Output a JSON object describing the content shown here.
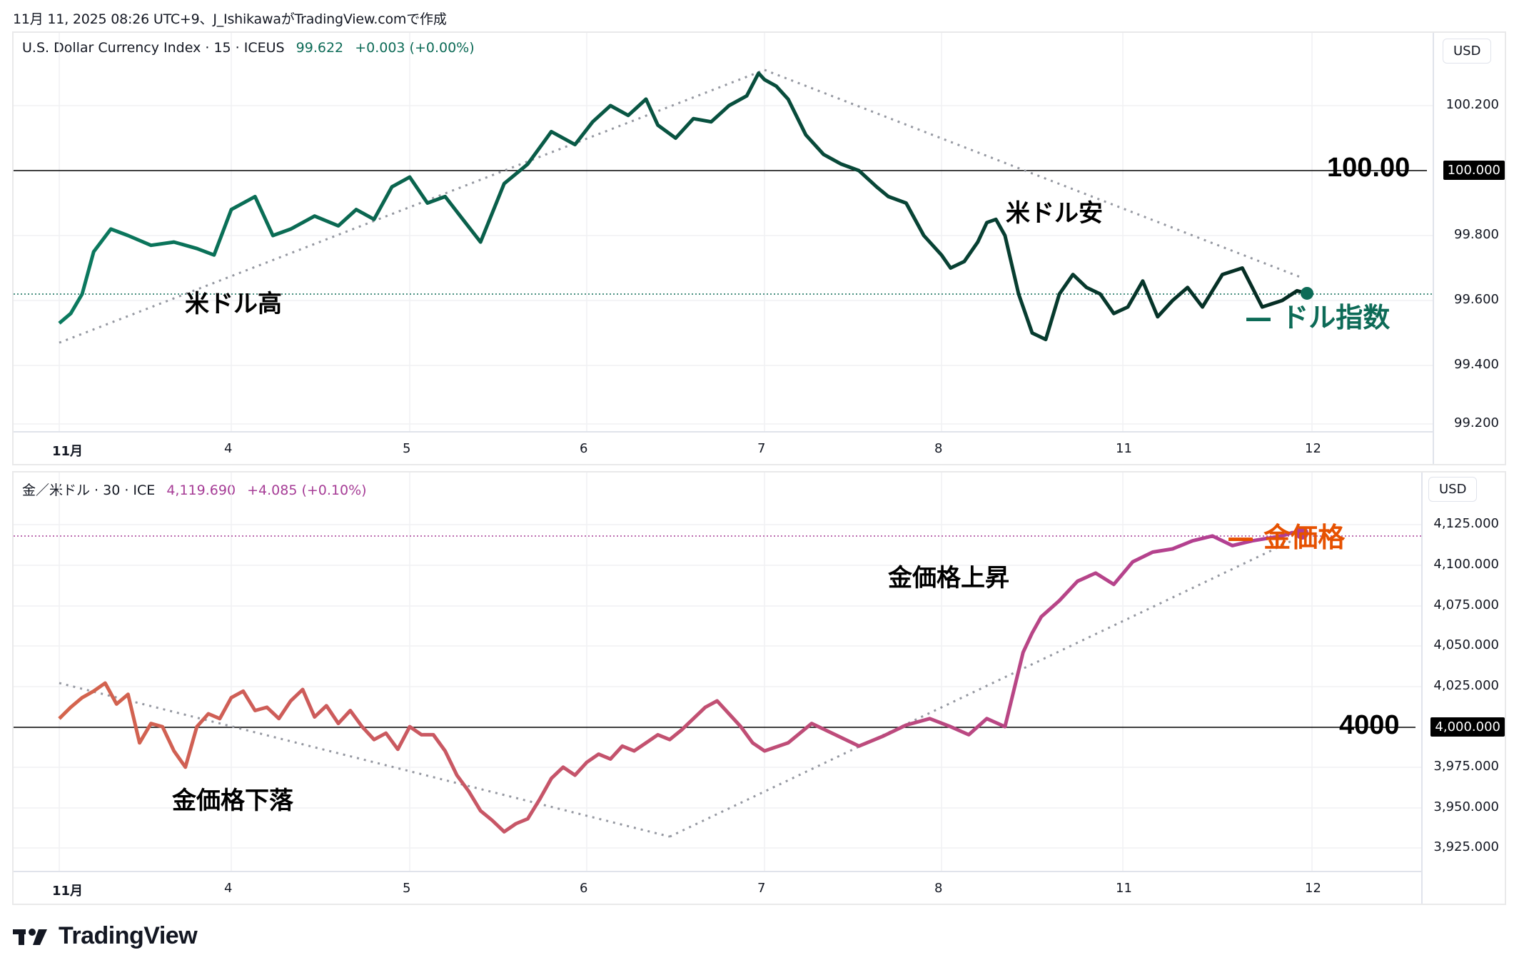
{
  "caption": "11月 11, 2025 08:26 UTC+9、J_IshikawaがTradingView.comで作成",
  "top_pane": {
    "symbol": "U.S. Dollar Currency Index · 15 · ICEUS",
    "last": "99.622",
    "change": "+0.003 (+0.00%)",
    "currency_button": "USD",
    "price_ticks": [
      "100.200",
      "100.000",
      "99.800",
      "99.600",
      "99.400",
      "99.200"
    ],
    "highlight_price": "100.000",
    "reference_level_label": "100.00",
    "series_label": "— ドル指数",
    "annotations": [
      "米ドル高",
      "米ドル安"
    ],
    "line_color_start": "#0b7a5f",
    "line_color_end": "#062b22"
  },
  "bottom_pane": {
    "symbol": "金／米ドル · 30 · ICE",
    "last": "4,119.690",
    "change": "+4.085 (+0.10%)",
    "currency_button": "USD",
    "price_ticks": [
      "4,125.000",
      "4,100.000",
      "4,075.000",
      "4,050.000",
      "4,025.000",
      "3,975.000",
      "3,950.000",
      "3,925.000"
    ],
    "highlight_price": "4,000.000",
    "reference_level_label": "4000",
    "series_label": "— 金価格",
    "annotations": [
      "金価格下落",
      "金価格上昇"
    ],
    "line_color_start": "#d4644c",
    "line_color_end": "#b03d96"
  },
  "time_ticks": [
    "11月",
    "4",
    "5",
    "6",
    "7",
    "8",
    "11",
    "12"
  ],
  "branding": "TradingView",
  "colors": {
    "dxy_text": "#0d6b57",
    "gold_text": "#a63c96",
    "gold_label": "#e65100",
    "dxy_label": "#0d6b57"
  },
  "chart_data": [
    {
      "type": "line",
      "title": "U.S. Dollar Currency Index · 15 · ICEUS",
      "xlabel": "",
      "ylabel": "USD",
      "categories": [
        "11月",
        "4",
        "5",
        "6",
        "7",
        "8",
        "11",
        "12"
      ],
      "ylim": [
        99.2,
        100.3
      ],
      "reference_line": 100.0,
      "last_value": 99.622,
      "annotations": [
        {
          "text": "米ドル高",
          "trend": "up",
          "from": [
            0,
            99.47
          ],
          "to": [
            6,
            100.31
          ]
        },
        {
          "text": "米ドル安",
          "trend": "down",
          "from": [
            6,
            100.31
          ],
          "to": [
            11.3,
            99.67
          ]
        }
      ],
      "series": [
        {
          "name": "ドル指数",
          "x": [
            0.0,
            0.1,
            0.2,
            0.3,
            0.45,
            0.6,
            0.8,
            1.0,
            1.2,
            1.35,
            1.5,
            1.7,
            1.85,
            2.0,
            2.2,
            2.4,
            2.55,
            2.7,
            2.85,
            3.0,
            3.15,
            3.3,
            3.45,
            3.6,
            3.8,
            4.0,
            4.2,
            4.4,
            4.55,
            4.7,
            4.85,
            5.0,
            5.1,
            5.25,
            5.4,
            5.55,
            5.7,
            5.85,
            5.95,
            6.0,
            6.1,
            6.2,
            6.35,
            6.5,
            6.65,
            6.8,
            6.95,
            7.05,
            7.2,
            7.35,
            7.5,
            7.6,
            7.75,
            7.9,
            8.0,
            8.1,
            8.2,
            8.35,
            8.5,
            8.65,
            8.8,
            8.95,
            9.1,
            9.25,
            9.4,
            9.55,
            9.7,
            9.85,
            10.0,
            10.15,
            10.3,
            10.5,
            10.7,
            10.9,
            11.1,
            11.25,
            11.35
          ],
          "values": [
            99.53,
            99.56,
            99.62,
            99.75,
            99.82,
            99.8,
            99.77,
            99.78,
            99.76,
            99.74,
            99.88,
            99.92,
            99.8,
            99.82,
            99.86,
            99.83,
            99.88,
            99.85,
            99.95,
            99.98,
            99.9,
            99.92,
            99.85,
            99.78,
            99.96,
            100.02,
            100.12,
            100.08,
            100.15,
            100.2,
            100.17,
            100.22,
            100.14,
            100.1,
            100.16,
            100.15,
            100.2,
            100.23,
            100.3,
            100.28,
            100.26,
            100.22,
            100.11,
            100.05,
            100.02,
            100.0,
            99.95,
            99.92,
            99.9,
            99.8,
            99.74,
            99.7,
            99.72,
            99.78,
            99.84,
            99.85,
            99.8,
            99.62,
            99.5,
            99.48,
            99.62,
            99.68,
            99.64,
            99.62,
            99.56,
            99.58,
            99.66,
            99.55,
            99.6,
            99.64,
            99.58,
            99.68,
            99.7,
            99.58,
            99.6,
            99.63,
            99.622
          ]
        }
      ]
    },
    {
      "type": "line",
      "title": "金／米ドル · 30 · ICE",
      "xlabel": "",
      "ylabel": "USD",
      "categories": [
        "11月",
        "4",
        "5",
        "6",
        "7",
        "8",
        "11",
        "12"
      ],
      "ylim": [
        3920,
        4130
      ],
      "reference_line": 4000,
      "last_value": 4119.69,
      "annotations": [
        {
          "text": "金価格下落",
          "trend": "down",
          "from": [
            0,
            4027
          ],
          "to": [
            5.2,
            3932
          ]
        },
        {
          "text": "金価格上昇",
          "trend": "up",
          "from": [
            5.2,
            3932
          ],
          "to": [
            11.3,
            4118
          ]
        }
      ],
      "series": [
        {
          "name": "金価格",
          "x": [
            0.0,
            0.1,
            0.2,
            0.3,
            0.4,
            0.5,
            0.6,
            0.7,
            0.8,
            0.9,
            1.0,
            1.1,
            1.2,
            1.3,
            1.4,
            1.5,
            1.6,
            1.7,
            1.8,
            1.9,
            2.0,
            2.1,
            2.2,
            2.3,
            2.4,
            2.5,
            2.6,
            2.7,
            2.8,
            2.9,
            3.0,
            3.1,
            3.2,
            3.3,
            3.4,
            3.5,
            3.6,
            3.7,
            3.8,
            3.9,
            4.0,
            4.1,
            4.2,
            4.3,
            4.4,
            4.5,
            4.6,
            4.7,
            4.8,
            4.9,
            5.0,
            5.1,
            5.2,
            5.3,
            5.4,
            5.5,
            5.6,
            5.7,
            5.8,
            5.9,
            6.0,
            6.2,
            6.4,
            6.6,
            6.8,
            7.0,
            7.2,
            7.4,
            7.6,
            7.8,
            8.0,
            8.2,
            8.4,
            8.5,
            8.6,
            8.8,
            9.0,
            9.2,
            9.4,
            9.6,
            9.8,
            10.0,
            10.2,
            10.4,
            10.6,
            10.8,
            11.0,
            11.1,
            11.2,
            11.3
          ],
          "values": [
            4005,
            4012,
            4018,
            4022,
            4027,
            4014,
            4020,
            3990,
            4002,
            4000,
            3985,
            3975,
            4000,
            4008,
            4005,
            4018,
            4022,
            4010,
            4012,
            4005,
            4016,
            4023,
            4006,
            4013,
            4002,
            4010,
            4000,
            3992,
            3996,
            3986,
            4000,
            3995,
            3995,
            3985,
            3970,
            3960,
            3948,
            3942,
            3935,
            3940,
            3943,
            3955,
            3968,
            3975,
            3970,
            3978,
            3983,
            3980,
            3988,
            3985,
            3990,
            3995,
            3992,
            3998,
            4005,
            4012,
            4016,
            4008,
            4000,
            3990,
            3985,
            3990,
            4002,
            3995,
            3988,
            3994,
            4001,
            4005,
            4000,
            3995,
            4005,
            4000,
            4046,
            4058,
            4068,
            4078,
            4090,
            4095,
            4088,
            4102,
            4108,
            4110,
            4115,
            4118,
            4112,
            4115,
            4117,
            4118,
            4120,
            4119.69
          ]
        }
      ]
    }
  ]
}
